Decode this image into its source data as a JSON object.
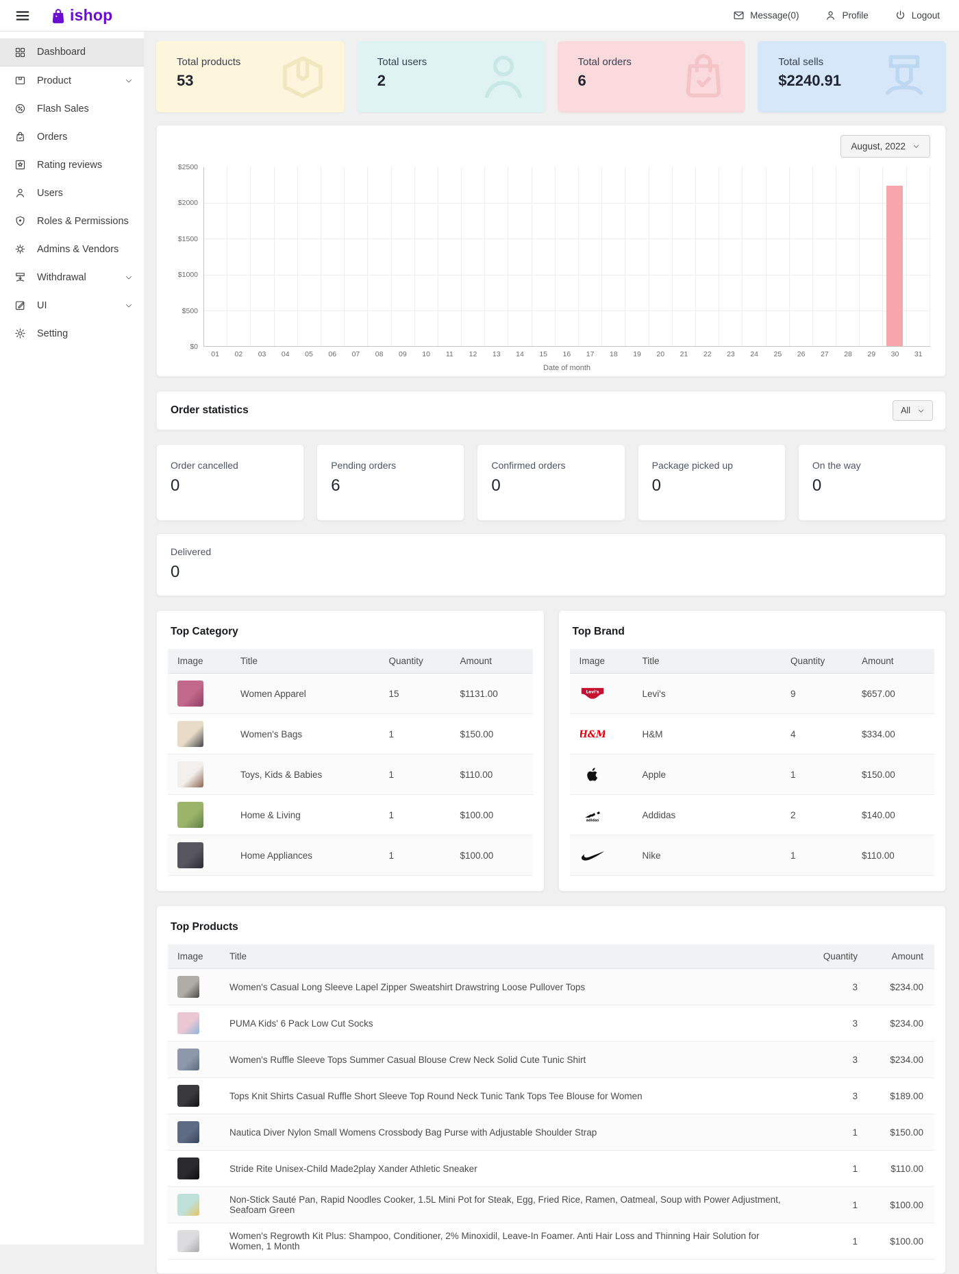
{
  "brand": {
    "name": "ishop",
    "color": "#6a0dd0"
  },
  "header": {
    "message_label": "Message(0)",
    "profile_label": "Profile",
    "logout_label": "Logout"
  },
  "sidebar": {
    "items": [
      {
        "label": "Dashboard",
        "icon": "dashboard-icon",
        "active": true,
        "has_submenu": false
      },
      {
        "label": "Product",
        "icon": "product-icon",
        "active": false,
        "has_submenu": true
      },
      {
        "label": "Flash Sales",
        "icon": "flash-sales-icon",
        "active": false,
        "has_submenu": false
      },
      {
        "label": "Orders",
        "icon": "orders-icon",
        "active": false,
        "has_submenu": false
      },
      {
        "label": "Rating reviews",
        "icon": "rating-reviews-icon",
        "active": false,
        "has_submenu": false
      },
      {
        "label": "Users",
        "icon": "users-icon",
        "active": false,
        "has_submenu": false
      },
      {
        "label": "Roles & Permissions",
        "icon": "roles-permissions-icon",
        "active": false,
        "has_submenu": false
      },
      {
        "label": "Admins & Vendors",
        "icon": "admins-vendors-icon",
        "active": false,
        "has_submenu": false
      },
      {
        "label": "Withdrawal",
        "icon": "withdrawal-icon",
        "active": false,
        "has_submenu": true
      },
      {
        "label": "UI",
        "icon": "ui-icon",
        "active": false,
        "has_submenu": true
      },
      {
        "label": "Setting",
        "icon": "setting-icon",
        "active": false,
        "has_submenu": false
      }
    ]
  },
  "stat_cards": [
    {
      "label": "Total products",
      "value": "53",
      "bg": "#fdf6dc",
      "icon": "package-icon",
      "icon_color": "#e7daa9"
    },
    {
      "label": "Total users",
      "value": "2",
      "bg": "#dff4f2",
      "icon": "user-big-icon",
      "icon_color": "#b7dfdb"
    },
    {
      "label": "Total orders",
      "value": "6",
      "bg": "#fadadc",
      "icon": "bag-check-icon",
      "icon_color": "#f0b3b8"
    },
    {
      "label": "Total sells",
      "value": "$2240.91",
      "bg": "#d5e7f8",
      "icon": "cash-out-icon",
      "icon_color": "#aecdec"
    }
  ],
  "chart_data": {
    "type": "bar",
    "month_label": "August, 2022",
    "x": [
      "01",
      "02",
      "03",
      "04",
      "05",
      "06",
      "07",
      "08",
      "09",
      "10",
      "11",
      "12",
      "13",
      "14",
      "15",
      "16",
      "17",
      "18",
      "19",
      "20",
      "21",
      "22",
      "23",
      "24",
      "25",
      "26",
      "27",
      "28",
      "29",
      "30",
      "31"
    ],
    "values": [
      0,
      0,
      0,
      0,
      0,
      0,
      0,
      0,
      0,
      0,
      0,
      0,
      0,
      0,
      0,
      0,
      0,
      0,
      0,
      0,
      0,
      0,
      0,
      0,
      0,
      0,
      0,
      0,
      0,
      2240.91,
      0
    ],
    "ytick_labels": [
      "$2500",
      "$2000",
      "$1500",
      "$1000",
      "$500",
      "$0"
    ],
    "ylim": [
      0,
      2500
    ],
    "xlabel": "Date of month",
    "ylabel": "",
    "title": "",
    "bar_color": "#f7a6ab",
    "grid": true,
    "legend": false
  },
  "order_statistics": {
    "title": "Order statistics",
    "filter_label": "All",
    "cards": [
      {
        "label": "Order cancelled",
        "value": "0"
      },
      {
        "label": "Pending orders",
        "value": "6"
      },
      {
        "label": "Confirmed orders",
        "value": "0"
      },
      {
        "label": "Package picked up",
        "value": "0"
      },
      {
        "label": "On the way",
        "value": "0"
      }
    ],
    "delivered": {
      "label": "Delivered",
      "value": "0"
    }
  },
  "top_category": {
    "title": "Top Category",
    "headers": [
      "Image",
      "Title",
      "Quantity",
      "Amount"
    ],
    "rows": [
      {
        "title": "Women Apparel",
        "quantity": "15",
        "amount": "$1131.00",
        "img": [
          "#c2688b",
          "#8f3f63"
        ]
      },
      {
        "title": "Women's Bags",
        "quantity": "1",
        "amount": "$150.00",
        "img": [
          "#e8dcc8",
          "#41444c"
        ]
      },
      {
        "title": "Toys, Kids & Babies",
        "quantity": "1",
        "amount": "$110.00",
        "img": [
          "#f2efec",
          "#8a6450"
        ]
      },
      {
        "title": "Home & Living",
        "quantity": "1",
        "amount": "$100.00",
        "img": [
          "#9cb46a",
          "#5f7f46"
        ]
      },
      {
        "title": "Home Appliances",
        "quantity": "1",
        "amount": "$100.00",
        "img": [
          "#57565f",
          "#2c2b33"
        ]
      }
    ]
  },
  "top_brand": {
    "title": "Top Brand",
    "headers": [
      "Image",
      "Title",
      "Quantity",
      "Amount"
    ],
    "rows": [
      {
        "title": "Levi's",
        "quantity": "9",
        "amount": "$657.00",
        "logo": "levis"
      },
      {
        "title": "H&M",
        "quantity": "4",
        "amount": "$334.00",
        "logo": "hm"
      },
      {
        "title": "Apple",
        "quantity": "1",
        "amount": "$150.00",
        "logo": "apple"
      },
      {
        "title": "Addidas",
        "quantity": "2",
        "amount": "$140.00",
        "logo": "adidas"
      },
      {
        "title": "Nike",
        "quantity": "1",
        "amount": "$110.00",
        "logo": "nike"
      }
    ]
  },
  "top_products": {
    "title": "Top Products",
    "headers": [
      "Image",
      "Title",
      "Quantity",
      "Amount"
    ],
    "rows": [
      {
        "title": "Women's Casual Long Sleeve Lapel Zipper Sweatshirt Drawstring Loose Pullover Tops",
        "quantity": "3",
        "amount": "$234.00",
        "img": [
          "#b0aca7",
          "#4a4845"
        ]
      },
      {
        "title": "PUMA Kids' 6 Pack Low Cut Socks",
        "quantity": "3",
        "amount": "$234.00",
        "img": [
          "#e9c8d4",
          "#8fb4d9"
        ]
      },
      {
        "title": "Women's Ruffle Sleeve Tops Summer Casual Blouse Crew Neck Solid Cute Tunic Shirt",
        "quantity": "3",
        "amount": "$234.00",
        "img": [
          "#8d99ab",
          "#5d6a7e"
        ]
      },
      {
        "title": "Tops Knit Shirts Casual Ruffle Short Sleeve Top Round Neck Tunic Tank Tops Tee Blouse for Women",
        "quantity": "3",
        "amount": "$189.00",
        "img": [
          "#3a3a3c",
          "#121214"
        ]
      },
      {
        "title": "Nautica Diver Nylon Small Womens Crossbody Bag Purse with Adjustable Shoulder Strap",
        "quantity": "1",
        "amount": "$150.00",
        "img": [
          "#5d6b85",
          "#39445a"
        ]
      },
      {
        "title": "Stride Rite Unisex-Child Made2play Xander Athletic Sneaker",
        "quantity": "1",
        "amount": "$110.00",
        "img": [
          "#2b2b2d",
          "#0c0c0e"
        ]
      },
      {
        "title": "Non-Stick Sauté Pan, Rapid Noodles Cooker, 1.5L Mini Pot for Steak, Egg, Fried Rice, Ramen, Oatmeal, Soup with Power Adjustment, Seafoam Green",
        "quantity": "1",
        "amount": "$100.00",
        "img": [
          "#bfe0d8",
          "#e4c465"
        ]
      },
      {
        "title": "Women's Regrowth Kit Plus: Shampoo, Conditioner, 2% Minoxidil, Leave-In Foamer. Anti Hair Loss and Thinning Hair Solution for Women, 1 Month",
        "quantity": "1",
        "amount": "$100.00",
        "img": [
          "#dcdcde",
          "#a9a9ad"
        ]
      }
    ]
  }
}
